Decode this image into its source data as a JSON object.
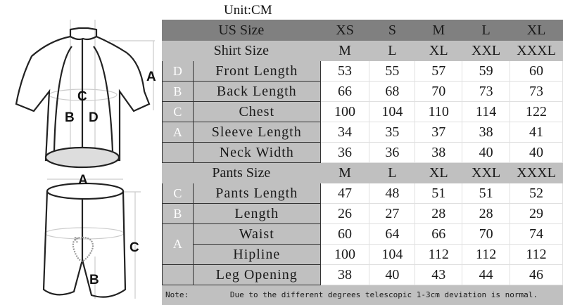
{
  "unit": "Unit:CM",
  "us_size": {
    "label": "US Size",
    "values": [
      "XS",
      "S",
      "M",
      "L",
      "XL"
    ]
  },
  "shirt_size": {
    "label": "Shirt Size",
    "values": [
      "M",
      "L",
      "XL",
      "XXL",
      "XXXL"
    ]
  },
  "shirt_rows": [
    {
      "letter": "D",
      "label": "Front Length",
      "values": [
        "53",
        "55",
        "57",
        "59",
        "60"
      ]
    },
    {
      "letter": "B",
      "label": "Back Length",
      "values": [
        "66",
        "68",
        "70",
        "73",
        "73"
      ]
    },
    {
      "letter": "C",
      "label": "Chest",
      "values": [
        "100",
        "104",
        "110",
        "114",
        "122"
      ]
    },
    {
      "letter": "A",
      "label": "Sleeve Length",
      "values": [
        "34",
        "35",
        "37",
        "38",
        "41"
      ]
    },
    {
      "letter": "",
      "label": "Neck Width",
      "values": [
        "36",
        "36",
        "38",
        "40",
        "40"
      ]
    }
  ],
  "pants_size": {
    "label": "Pants Size",
    "values": [
      "M",
      "L",
      "XL",
      "XXL",
      "XXXL"
    ]
  },
  "pants_rows": [
    {
      "letter": "C",
      "label": "Pants Length",
      "values": [
        "47",
        "48",
        "51",
        "51",
        "52"
      ]
    },
    {
      "letter": "B",
      "label": "Length",
      "values": [
        "26",
        "27",
        "28",
        "28",
        "29"
      ]
    },
    {
      "letter": "A",
      "label": "Waist",
      "values": [
        "60",
        "64",
        "66",
        "70",
        "74"
      ]
    },
    {
      "letter": "",
      "label": "Hipline",
      "values": [
        "100",
        "104",
        "112",
        "112",
        "112"
      ]
    },
    {
      "letter": "",
      "label": "Leg Opening",
      "values": [
        "38",
        "40",
        "43",
        "44",
        "46"
      ]
    }
  ],
  "note": {
    "label": "Note:",
    "text": "Due to the different degrees telescopic 1-3cm deviation is normal."
  },
  "diagram": {
    "jersey_labels": [
      "A",
      "B",
      "C",
      "D"
    ],
    "shorts_labels": [
      "A",
      "B",
      "C"
    ]
  }
}
